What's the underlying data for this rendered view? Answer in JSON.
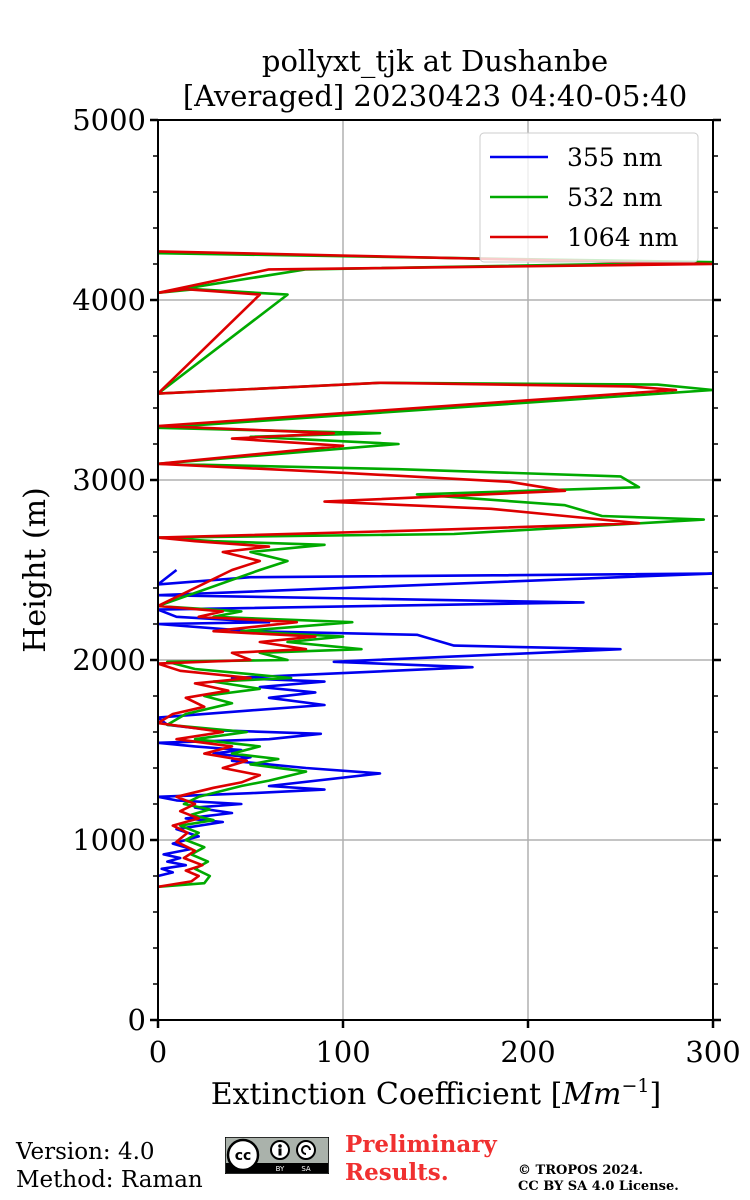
{
  "chart_data": {
    "type": "line",
    "title": [
      "pollyxt_tjk at Dushanbe",
      "[Averaged] 20230423 04:40-05:40"
    ],
    "xlabel": "Extinction Coefficient [Mm⁻¹]",
    "xlabel_parts": {
      "base": "Extinction Coefficient [",
      "unit": "Mm",
      "exp": "−1",
      "close": "]"
    },
    "ylabel": "Height (m)",
    "xlim": [
      0,
      300
    ],
    "ylim": [
      0,
      5000
    ],
    "xticks": [
      0,
      100,
      200,
      300
    ],
    "yticks": [
      0,
      1000,
      2000,
      3000,
      4000,
      5000
    ],
    "grid": true,
    "legend_position": "top-right",
    "series": [
      {
        "name": "355 nm",
        "color": "#0000ee",
        "points": [
          [
            0,
            800
          ],
          [
            8,
            820
          ],
          [
            2,
            840
          ],
          [
            15,
            860
          ],
          [
            5,
            880
          ],
          [
            12,
            900
          ],
          [
            3,
            920
          ],
          [
            18,
            950
          ],
          [
            8,
            980
          ],
          [
            22,
            1020
          ],
          [
            10,
            1060
          ],
          [
            35,
            1100
          ],
          [
            15,
            1120
          ],
          [
            40,
            1150
          ],
          [
            20,
            1180
          ],
          [
            45,
            1200
          ],
          [
            10,
            1220
          ],
          [
            0,
            1240
          ],
          [
            50,
            1260
          ],
          [
            90,
            1280
          ],
          [
            60,
            1300
          ],
          [
            120,
            1370
          ],
          [
            80,
            1400
          ],
          [
            60,
            1420
          ],
          [
            40,
            1440
          ],
          [
            50,
            1460
          ],
          [
            30,
            1480
          ],
          [
            45,
            1500
          ],
          [
            20,
            1520
          ],
          [
            0,
            1540
          ],
          [
            60,
            1560
          ],
          [
            88,
            1590
          ],
          [
            30,
            1610
          ],
          [
            5,
            1640
          ],
          [
            0,
            1680
          ],
          [
            50,
            1720
          ],
          [
            90,
            1750
          ],
          [
            60,
            1790
          ],
          [
            85,
            1820
          ],
          [
            55,
            1850
          ],
          [
            90,
            1880
          ],
          [
            40,
            1900
          ],
          [
            170,
            1960
          ],
          [
            95,
            1990
          ],
          [
            250,
            2060
          ],
          [
            160,
            2080
          ],
          [
            140,
            2140
          ],
          [
            50,
            2160
          ],
          [
            0,
            2200
          ],
          [
            60,
            2210
          ],
          [
            10,
            2240
          ],
          [
            0,
            2280
          ],
          [
            230,
            2320
          ],
          [
            0,
            2360
          ],
          [
            300,
            2480
          ],
          [
            50,
            2460
          ],
          [
            0,
            2420
          ],
          [
            10,
            2500
          ]
        ]
      },
      {
        "name": "532 nm",
        "color": "#00aa00",
        "points": [
          [
            0,
            740
          ],
          [
            25,
            760
          ],
          [
            28,
            800
          ],
          [
            20,
            840
          ],
          [
            27,
            880
          ],
          [
            18,
            920
          ],
          [
            25,
            960
          ],
          [
            15,
            1000
          ],
          [
            22,
            1040
          ],
          [
            12,
            1080
          ],
          [
            30,
            1110
          ],
          [
            18,
            1140
          ],
          [
            28,
            1170
          ],
          [
            14,
            1200
          ],
          [
            22,
            1240
          ],
          [
            45,
            1300
          ],
          [
            60,
            1330
          ],
          [
            80,
            1380
          ],
          [
            50,
            1420
          ],
          [
            65,
            1450
          ],
          [
            40,
            1480
          ],
          [
            55,
            1520
          ],
          [
            20,
            1560
          ],
          [
            48,
            1600
          ],
          [
            5,
            1640
          ],
          [
            15,
            1700
          ],
          [
            40,
            1760
          ],
          [
            25,
            1800
          ],
          [
            55,
            1840
          ],
          [
            30,
            1880
          ],
          [
            72,
            1900
          ],
          [
            20,
            1950
          ],
          [
            5,
            1990
          ],
          [
            70,
            2000
          ],
          [
            55,
            2040
          ],
          [
            110,
            2060
          ],
          [
            70,
            2100
          ],
          [
            100,
            2130
          ],
          [
            45,
            2160
          ],
          [
            105,
            2210
          ],
          [
            30,
            2240
          ],
          [
            45,
            2270
          ],
          [
            0,
            2300
          ],
          [
            55,
            2500
          ],
          [
            70,
            2550
          ],
          [
            50,
            2600
          ],
          [
            90,
            2640
          ],
          [
            30,
            2660
          ],
          [
            0,
            2680
          ],
          [
            160,
            2700
          ],
          [
            295,
            2780
          ],
          [
            240,
            2800
          ],
          [
            220,
            2860
          ],
          [
            140,
            2920
          ],
          [
            260,
            2960
          ],
          [
            250,
            3020
          ],
          [
            130,
            3060
          ],
          [
            0,
            3090
          ],
          [
            130,
            3200
          ],
          [
            50,
            3240
          ],
          [
            120,
            3260
          ],
          [
            0,
            3290
          ],
          [
            300,
            3500
          ],
          [
            270,
            3530
          ],
          [
            120,
            3540
          ],
          [
            0,
            3480
          ],
          [
            70,
            4030
          ],
          [
            20,
            4060
          ],
          [
            0,
            4040
          ],
          [
            80,
            4170
          ],
          [
            300,
            4210
          ],
          [
            0,
            4260
          ]
        ]
      },
      {
        "name": "1064 nm",
        "color": "#dd0000",
        "points": [
          [
            0,
            740
          ],
          [
            18,
            770
          ],
          [
            22,
            800
          ],
          [
            15,
            830
          ],
          [
            24,
            860
          ],
          [
            14,
            900
          ],
          [
            20,
            940
          ],
          [
            10,
            990
          ],
          [
            16,
            1040
          ],
          [
            8,
            1080
          ],
          [
            22,
            1120
          ],
          [
            12,
            1160
          ],
          [
            20,
            1200
          ],
          [
            10,
            1240
          ],
          [
            30,
            1290
          ],
          [
            45,
            1320
          ],
          [
            55,
            1360
          ],
          [
            35,
            1400
          ],
          [
            48,
            1440
          ],
          [
            25,
            1480
          ],
          [
            40,
            1520
          ],
          [
            10,
            1560
          ],
          [
            35,
            1600
          ],
          [
            0,
            1650
          ],
          [
            8,
            1700
          ],
          [
            25,
            1740
          ],
          [
            15,
            1790
          ],
          [
            38,
            1830
          ],
          [
            20,
            1870
          ],
          [
            50,
            1900
          ],
          [
            12,
            1940
          ],
          [
            0,
            1980
          ],
          [
            50,
            2000
          ],
          [
            40,
            2040
          ],
          [
            80,
            2060
          ],
          [
            55,
            2100
          ],
          [
            85,
            2130
          ],
          [
            30,
            2160
          ],
          [
            75,
            2210
          ],
          [
            22,
            2240
          ],
          [
            35,
            2270
          ],
          [
            0,
            2300
          ],
          [
            40,
            2500
          ],
          [
            55,
            2550
          ],
          [
            35,
            2600
          ],
          [
            60,
            2630
          ],
          [
            20,
            2660
          ],
          [
            0,
            2680
          ],
          [
            140,
            2720
          ],
          [
            260,
            2760
          ],
          [
            220,
            2800
          ],
          [
            180,
            2840
          ],
          [
            90,
            2880
          ],
          [
            220,
            2940
          ],
          [
            190,
            2990
          ],
          [
            100,
            3040
          ],
          [
            0,
            3090
          ],
          [
            100,
            3190
          ],
          [
            40,
            3230
          ],
          [
            95,
            3260
          ],
          [
            0,
            3300
          ],
          [
            280,
            3500
          ],
          [
            255,
            3520
          ],
          [
            120,
            3540
          ],
          [
            0,
            3480
          ],
          [
            55,
            4030
          ],
          [
            15,
            4060
          ],
          [
            0,
            4040
          ],
          [
            60,
            4170
          ],
          [
            300,
            4200
          ],
          [
            0,
            4270
          ]
        ]
      }
    ]
  },
  "footer": {
    "version": "Version: 4.0",
    "method": "Method: Raman",
    "prelim_line1": "Preliminary",
    "prelim_line2": "Results.",
    "copyright": "© TROPOS 2024.",
    "license": "CC BY SA 4.0 License.",
    "cc_icon_label": "cc",
    "cc_by": "BY",
    "cc_sa": "SA"
  }
}
